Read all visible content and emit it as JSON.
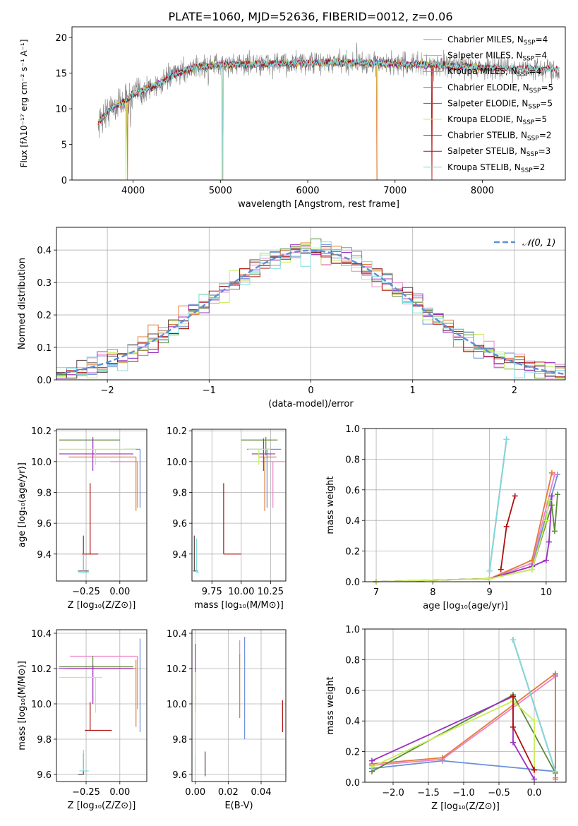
{
  "figure": {
    "title": "PLATE=1060, MJD=52636, FIBERID=0012, z=0.06",
    "legend_entries": [
      {
        "label": "Chabrier MILES, N",
        "sub": "SSP",
        "tail": "=4",
        "color": "#6a8fd8"
      },
      {
        "label": "Salpeter MILES, N",
        "sub": "SSP",
        "tail": "=4",
        "color": "#ee82c8"
      },
      {
        "label": "Kroupa MILES, N",
        "sub": "SSP",
        "tail": "=4",
        "color": "#e07b39"
      },
      {
        "label": "Chabrier ELODIE, N",
        "sub": "SSP",
        "tail": "=5",
        "color": "#5c8a3a"
      },
      {
        "label": "Salpeter ELODIE, N",
        "sub": "SSP",
        "tail": "=5",
        "color": "#9b30c0"
      },
      {
        "label": "Kroupa ELODIE, N",
        "sub": "SSP",
        "tail": "=5",
        "color": "#c8ef5a"
      },
      {
        "label": "Chabrier STELIB, N",
        "sub": "SSP",
        "tail": "=2",
        "color": "#5a4444"
      },
      {
        "label": "Salpeter STELIB, N",
        "sub": "SSP",
        "tail": "=3",
        "color": "#b01010"
      },
      {
        "label": "Kroupa STELIB, N",
        "sub": "SSP",
        "tail": "=2",
        "color": "#7fdce0"
      }
    ]
  },
  "chart_data": [
    {
      "id": "spectrum",
      "type": "line",
      "xlabel": "wavelength [Angstrom, rest frame]",
      "ylabel": "Flux [fλ10⁻¹⁷ erg cm⁻² s⁻¹ A⁻¹]",
      "xlim": [
        3300,
        8950
      ],
      "ylim": [
        0,
        21.5
      ],
      "xticks": [
        4000,
        5000,
        6000,
        7000,
        8000
      ],
      "yticks": [
        0,
        5,
        10,
        15,
        20
      ],
      "data_profile": {
        "x": [
          3600,
          3700,
          3800,
          3900,
          4000,
          4100,
          4200,
          4300,
          4500,
          4700,
          5000,
          5500,
          6000,
          6500,
          7000,
          7500,
          8000,
          8500,
          8900
        ],
        "y": [
          8.0,
          9.5,
          10.5,
          11.0,
          12.0,
          12.5,
          13.0,
          13.5,
          15.0,
          15.8,
          16.2,
          16.3,
          16.4,
          16.5,
          16.3,
          16.1,
          15.8,
          15.6,
          15.5
        ]
      }
    },
    {
      "id": "residual_hist",
      "type": "line",
      "xlabel": "(data-model)/error",
      "ylabel": "Normed distribution",
      "xlim": [
        -2.5,
        2.5
      ],
      "ylim": [
        0,
        0.47
      ],
      "xticks": [
        -2,
        -1,
        0,
        1,
        2
      ],
      "yticks": [
        0.0,
        0.1,
        0.2,
        0.3,
        0.4
      ],
      "normal_label": "𝒩(0, 1)",
      "normal_color": "#5b8fd6"
    },
    {
      "id": "age_vs_Z",
      "type": "scatter",
      "xlabel": "Z [log₁₀(Z/Z⊙)]",
      "ylabel": "age  [log₁₀(age/yr)]",
      "xlim": [
        -0.47,
        0.2
      ],
      "ylim": [
        9.225,
        10.21
      ],
      "xticks": [
        -0.25,
        0.0
      ],
      "yticks": [
        9.4,
        9.6,
        9.8,
        10.0,
        10.2
      ],
      "errorbars": [
        {
          "c": "#6a8fd8",
          "x": 0.15,
          "xerr": [
            0.12,
            0.0
          ],
          "y": 10.08,
          "yerr": [
            0.38,
            0.0
          ]
        },
        {
          "c": "#ee82c8",
          "x": 0.13,
          "xerr": [
            0.2,
            0.0
          ],
          "y": 10.0,
          "yerr": [
            0.3,
            0.0
          ]
        },
        {
          "c": "#e07b39",
          "x": 0.12,
          "xerr": [
            0.5,
            0.0
          ],
          "y": 10.03,
          "yerr": [
            0.35,
            0.0
          ]
        },
        {
          "c": "#5c8a3a",
          "x": -0.2,
          "xerr": [
            0.25,
            0.2
          ],
          "y": 10.14,
          "yerr": [
            0.1,
            0.02
          ]
        },
        {
          "c": "#9b30c0",
          "x": -0.2,
          "xerr": [
            0.25,
            0.3
          ],
          "y": 10.05,
          "yerr": [
            0.11,
            0.1
          ]
        },
        {
          "c": "#c8ef5a",
          "x": -0.18,
          "xerr": [
            0.27,
            0.3
          ],
          "y": 10.08,
          "yerr": [
            0.1,
            0.0
          ]
        },
        {
          "c": "#5a4444",
          "x": -0.27,
          "xerr": [
            0.04,
            0.04
          ],
          "y": 9.29,
          "yerr": [
            0.0,
            0.23
          ]
        },
        {
          "c": "#b01010",
          "x": -0.22,
          "xerr": [
            0.06,
            0.06
          ],
          "y": 9.4,
          "yerr": [
            0.0,
            0.46
          ]
        },
        {
          "c": "#7fdce0",
          "x": -0.27,
          "xerr": [
            0.04,
            0.04
          ],
          "y": 9.28,
          "yerr": [
            0.0,
            0.12
          ]
        }
      ]
    },
    {
      "id": "age_vs_mass",
      "type": "scatter",
      "xlabel": "mass [log₁₀(M/M⊙)]",
      "ylabel": "",
      "xlim": [
        9.58,
        10.38
      ],
      "ylim": [
        9.225,
        10.21
      ],
      "xticks": [
        9.75,
        10.0,
        10.25
      ],
      "yticks": [
        9.4,
        9.6,
        9.8,
        10.0,
        10.2
      ],
      "errorbars": [
        {
          "c": "#6a8fd8",
          "x": 10.22,
          "xerr": [
            0.17,
            0.12
          ],
          "y": 10.08,
          "yerr": [
            0.38,
            0.0
          ]
        },
        {
          "c": "#ee82c8",
          "x": 10.27,
          "xerr": [
            0.1,
            0.1
          ],
          "y": 10.0,
          "yerr": [
            0.3,
            0.0
          ]
        },
        {
          "c": "#e07b39",
          "x": 10.2,
          "xerr": [
            0.05,
            0.1
          ],
          "y": 10.03,
          "yerr": [
            0.35,
            0.0
          ]
        },
        {
          "c": "#5c8a3a",
          "x": 10.21,
          "xerr": [
            0.21,
            0.1
          ],
          "y": 10.14,
          "yerr": [
            0.1,
            0.02
          ]
        },
        {
          "c": "#9b30c0",
          "x": 10.19,
          "xerr": [
            0.1,
            0.1
          ],
          "y": 10.05,
          "yerr": [
            0.11,
            0.1
          ]
        },
        {
          "c": "#c8ef5a",
          "x": 10.15,
          "xerr": [
            0.09,
            0.1
          ],
          "y": 10.08,
          "yerr": [
            0.1,
            0.0
          ]
        },
        {
          "c": "#5a4444",
          "x": 9.6,
          "xerr": [
            0.01,
            0.03
          ],
          "y": 9.29,
          "yerr": [
            0.0,
            0.23
          ]
        },
        {
          "c": "#b01010",
          "x": 9.85,
          "xerr": [
            0.0,
            0.15
          ],
          "y": 9.4,
          "yerr": [
            0.0,
            0.46
          ]
        },
        {
          "c": "#7fdce0",
          "x": 9.62,
          "xerr": [
            0.0,
            0.02
          ],
          "y": 9.28,
          "yerr": [
            0.0,
            0.22
          ]
        }
      ]
    },
    {
      "id": "weight_vs_age",
      "type": "line",
      "xlabel": "age  [log₁₀(age/yr)]",
      "ylabel": "mass weight",
      "xlim": [
        6.8,
        10.35
      ],
      "ylim": [
        0,
        1.0
      ],
      "xticks": [
        7,
        8,
        9,
        10
      ],
      "yticks": [
        0.0,
        0.2,
        0.4,
        0.6,
        0.8,
        1.0
      ],
      "series": [
        {
          "c": "#6a8fd8",
          "x": [
            7.0,
            9.0,
            9.75,
            10.2
          ],
          "y": [
            0.0,
            0.02,
            0.1,
            0.7
          ]
        },
        {
          "c": "#ee82c8",
          "x": [
            7.0,
            9.0,
            9.75,
            10.15
          ],
          "y": [
            0.0,
            0.02,
            0.12,
            0.7
          ]
        },
        {
          "c": "#e07b39",
          "x": [
            7.0,
            9.0,
            9.75,
            10.1
          ],
          "y": [
            0.0,
            0.02,
            0.14,
            0.71
          ]
        },
        {
          "c": "#5c8a3a",
          "x": [
            7.0,
            9.0,
            9.75,
            10.1,
            10.15,
            10.2
          ],
          "y": [
            0.0,
            0.02,
            0.08,
            0.5,
            0.33,
            0.57
          ]
        },
        {
          "c": "#9b30c0",
          "x": [
            7.0,
            9.0,
            9.75,
            10.0,
            10.05,
            10.1
          ],
          "y": [
            0.0,
            0.02,
            0.1,
            0.14,
            0.26,
            0.56
          ]
        },
        {
          "c": "#c8ef5a",
          "x": [
            7.0,
            9.0,
            9.75,
            10.0,
            10.05
          ],
          "y": [
            0.0,
            0.02,
            0.08,
            0.4,
            0.53
          ]
        },
        {
          "c": "#5a4444",
          "x": [
            9.0,
            9.3
          ],
          "y": [
            0.07,
            0.93
          ]
        },
        {
          "c": "#b01010",
          "x": [
            9.2,
            9.3,
            9.45
          ],
          "y": [
            0.08,
            0.36,
            0.56
          ]
        },
        {
          "c": "#7fdce0",
          "x": [
            9.0,
            9.3
          ],
          "y": [
            0.07,
            0.93
          ]
        }
      ]
    },
    {
      "id": "mass_vs_Z",
      "type": "scatter",
      "xlabel": "Z [log₁₀(Z/Z⊙)]",
      "ylabel": "mass [log₁₀(M/M⊙)]",
      "xlim": [
        -0.47,
        0.2
      ],
      "ylim": [
        9.56,
        10.42
      ],
      "xticks": [
        -0.25,
        0.0
      ],
      "yticks": [
        9.6,
        9.8,
        10.0,
        10.2,
        10.4
      ],
      "errorbars": [
        {
          "c": "#6a8fd8",
          "x": 0.15,
          "xerr": [
            0.0,
            0.0
          ],
          "y": 10.22,
          "yerr": [
            0.38,
            0.15
          ]
        },
        {
          "c": "#ee82c8",
          "x": 0.13,
          "xerr": [
            0.5,
            0.0
          ],
          "y": 10.27,
          "yerr": [
            0.3,
            0.0
          ]
        },
        {
          "c": "#e07b39",
          "x": 0.12,
          "xerr": [
            0.5,
            0.0
          ],
          "y": 10.2,
          "yerr": [
            0.33,
            0.05
          ]
        },
        {
          "c": "#5c8a3a",
          "x": -0.2,
          "xerr": [
            0.25,
            0.3
          ],
          "y": 10.21,
          "yerr": [
            0.2,
            0.06
          ]
        },
        {
          "c": "#9b30c0",
          "x": -0.2,
          "xerr": [
            0.25,
            0.3
          ],
          "y": 10.2,
          "yerr": [
            0.2,
            0.02
          ]
        },
        {
          "c": "#c8ef5a",
          "x": -0.18,
          "xerr": [
            0.27,
            0.05
          ],
          "y": 10.15,
          "yerr": [
            0.2,
            0.0
          ]
        },
        {
          "c": "#5a4444",
          "x": -0.27,
          "xerr": [
            0.04,
            0.0
          ],
          "y": 9.6,
          "yerr": [
            0.0,
            0.12
          ]
        },
        {
          "c": "#b01010",
          "x": -0.22,
          "xerr": [
            0.04,
            0.16
          ],
          "y": 9.85,
          "yerr": [
            0.0,
            0.16
          ]
        },
        {
          "c": "#7fdce0",
          "x": -0.27,
          "xerr": [
            0.03,
            0.04
          ],
          "y": 9.62,
          "yerr": [
            0.0,
            0.12
          ]
        }
      ]
    },
    {
      "id": "mass_vs_EBV",
      "type": "scatter",
      "xlabel": "E(B-V)",
      "ylabel": "",
      "xlim": [
        -0.002,
        0.055
      ],
      "ylim": [
        9.56,
        10.42
      ],
      "xticks": [
        0.0,
        0.02,
        0.04
      ],
      "yticks": [
        9.6,
        9.8,
        10.0,
        10.2,
        10.4
      ],
      "errorbars": [
        {
          "c": "#6a8fd8",
          "x": 0.03,
          "xerr": [
            0.0,
            0.0
          ],
          "y": 10.09,
          "yerr": [
            0.29,
            0.29
          ]
        },
        {
          "c": "#ee82c8",
          "x": 0.027,
          "xerr": [
            0.0,
            0.0
          ],
          "y": 10.27,
          "yerr": [
            0.0,
            0.09
          ]
        },
        {
          "c": "#e07b39",
          "x": 0.027,
          "xerr": [
            0.0,
            0.0
          ],
          "y": 10.1,
          "yerr": [
            0.18,
            0.18
          ]
        },
        {
          "c": "#5c8a3a",
          "x": 0.0,
          "xerr": [
            0.0,
            0.0
          ],
          "y": 10.0,
          "yerr": [
            0.05,
            0.05
          ]
        },
        {
          "c": "#9b30c0",
          "x": 0.0,
          "xerr": [
            0.0,
            0.0
          ],
          "y": 10.18,
          "yerr": [
            0.16,
            0.16
          ]
        },
        {
          "c": "#c8ef5a",
          "x": 0.0,
          "xerr": [
            0.0,
            0.0
          ],
          "y": 10.05,
          "yerr": [
            0.13,
            0.13
          ]
        },
        {
          "c": "#5a4444",
          "x": 0.006,
          "xerr": [
            0.0,
            0.0
          ],
          "y": 9.66,
          "yerr": [
            0.07,
            0.07
          ]
        },
        {
          "c": "#b01010",
          "x": 0.053,
          "xerr": [
            0.0,
            0.0
          ],
          "y": 9.94,
          "yerr": [
            0.1,
            0.08
          ]
        },
        {
          "c": "#7fdce0",
          "x": 0.0,
          "xerr": [
            0.0,
            0.0
          ],
          "y": 9.66,
          "yerr": [
            0.04,
            0.04
          ]
        }
      ]
    },
    {
      "id": "weight_vs_Z",
      "type": "line",
      "xlabel": "Z [log₁₀(Z/Z⊙)]",
      "ylabel": "mass weight",
      "xlim": [
        -2.4,
        0.45
      ],
      "ylim": [
        0,
        1.0
      ],
      "xticks": [
        -2.0,
        -1.5,
        -1.0,
        -0.5,
        0.0
      ],
      "yticks": [
        0.0,
        0.2,
        0.4,
        0.6,
        0.8,
        1.0
      ],
      "series": [
        {
          "c": "#6a8fd8",
          "x": [
            -2.3,
            -1.3,
            0.3,
            0.3
          ],
          "y": [
            0.09,
            0.14,
            0.07,
            0.7
          ]
        },
        {
          "c": "#ee82c8",
          "x": [
            -2.3,
            -1.3,
            0.3,
            0.3
          ],
          "y": [
            0.11,
            0.15,
            0.69,
            0.03
          ]
        },
        {
          "c": "#e07b39",
          "x": [
            -2.3,
            -1.3,
            0.3,
            0.3
          ],
          "y": [
            0.12,
            0.16,
            0.71,
            0.02
          ]
        },
        {
          "c": "#5c8a3a",
          "x": [
            -2.3,
            -0.3,
            0.3
          ],
          "y": [
            0.07,
            0.57,
            0.06
          ]
        },
        {
          "c": "#9b30c0",
          "x": [
            -2.3,
            -0.3,
            -0.3,
            0.0
          ],
          "y": [
            0.14,
            0.56,
            0.26,
            0.02
          ]
        },
        {
          "c": "#c8ef5a",
          "x": [
            -2.3,
            -0.3,
            0.0,
            0.0
          ],
          "y": [
            0.1,
            0.53,
            0.4,
            0.08
          ]
        },
        {
          "c": "#5a4444",
          "x": [
            -0.3,
            0.3
          ],
          "y": [
            0.93,
            0.07
          ]
        },
        {
          "c": "#b01010",
          "x": [
            -0.3,
            -0.3,
            0.0,
            0.0
          ],
          "y": [
            0.56,
            0.36,
            0.08,
            0.08
          ]
        },
        {
          "c": "#7fdce0",
          "x": [
            -0.3,
            0.3
          ],
          "y": [
            0.93,
            0.07
          ]
        }
      ]
    }
  ]
}
